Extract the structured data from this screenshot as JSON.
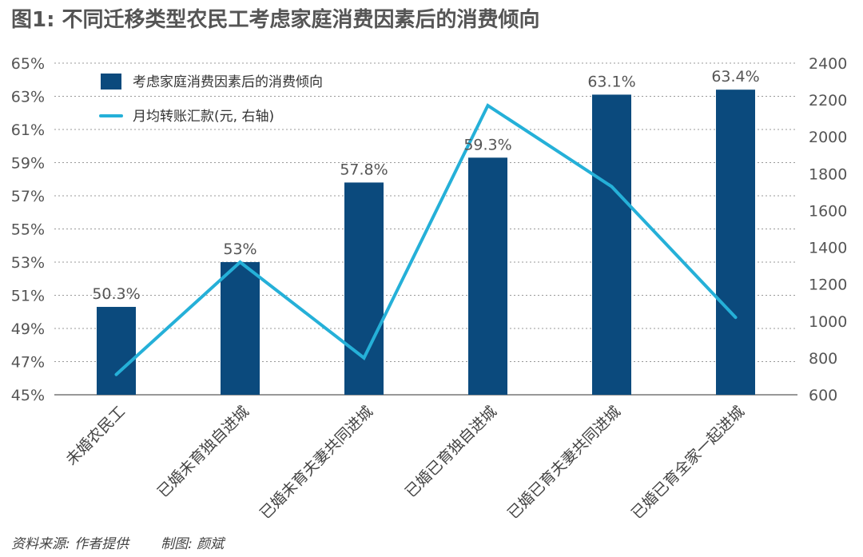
{
  "title": "图1: 不同迁移类型农民工考虑家庭消费因素后的消费倾向",
  "source": "资料来源: 作者提供",
  "credit": "制图: 颜斌",
  "colors": {
    "bar": "#0b4a7d",
    "line": "#25b0d8",
    "grid": "#999999",
    "axis": "#777777"
  },
  "chart_data": {
    "type": "bar",
    "categories": [
      "未婚农民工",
      "已婚未育独自进城",
      "已婚未育夫妻共同进城",
      "已婚已育独自进城",
      "已婚已育夫妻共同进城",
      "已婚已育全家一起进城"
    ],
    "series": [
      {
        "name": "考虑家庭消费因素后的消费倾向",
        "type": "bar",
        "axis": "left",
        "values": [
          50.3,
          53,
          57.8,
          59.3,
          63.1,
          63.4
        ],
        "labels": [
          "50.3%",
          "53%",
          "57.8%",
          "59.3%",
          "63.1%",
          "63.4%"
        ]
      },
      {
        "name": "月均转账汇款(元, 右轴)",
        "type": "line",
        "axis": "right",
        "values": [
          710,
          1320,
          800,
          2170,
          1730,
          1020
        ]
      }
    ],
    "y_left": {
      "min": 45,
      "max": 65,
      "ticks": [
        45,
        47,
        49,
        51,
        53,
        55,
        57,
        59,
        61,
        63,
        65
      ],
      "tick_labels": [
        "45%",
        "47%",
        "49%",
        "51%",
        "53%",
        "55%",
        "57%",
        "59%",
        "61%",
        "63%",
        "65%"
      ]
    },
    "y_right": {
      "min": 600,
      "max": 2400,
      "ticks": [
        600,
        800,
        1000,
        1200,
        1400,
        1600,
        1800,
        2000,
        2200,
        2400
      ],
      "tick_labels": [
        "600",
        "800",
        "1000",
        "1200",
        "1400",
        "1600",
        "1800",
        "2000",
        "2200",
        "2400"
      ]
    },
    "grid": true,
    "legend_position": "top-left"
  }
}
